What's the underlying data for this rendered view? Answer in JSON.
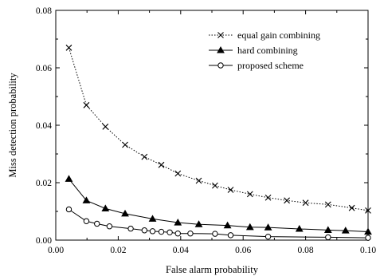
{
  "chart_data": {
    "type": "line",
    "title": "",
    "xlabel": "False alarm probability",
    "ylabel": "Miss detection probability",
    "xlim": [
      0.0,
      0.1
    ],
    "ylim": [
      0.0,
      0.08
    ],
    "xticks": [
      0.0,
      0.02,
      0.04,
      0.06,
      0.08,
      0.1
    ],
    "xtick_labels": [
      "0.00",
      "0.02",
      "0.04",
      "0.06",
      "0.08",
      "0.10"
    ],
    "yticks": [
      0.0,
      0.02,
      0.04,
      0.06,
      0.08
    ],
    "ytick_labels": [
      "0.00",
      "0.02",
      "0.04",
      "0.06",
      "0.08"
    ],
    "grid": false,
    "legend_position": "top-right",
    "series": [
      {
        "name": "equal gain combining",
        "marker": "x",
        "line_style": "dotted",
        "color": "#000000",
        "points": [
          [
            0.0042,
            0.067
          ],
          [
            0.0098,
            0.047
          ],
          [
            0.0159,
            0.0395
          ],
          [
            0.0222,
            0.0332
          ],
          [
            0.0284,
            0.029
          ],
          [
            0.0338,
            0.0262
          ],
          [
            0.0391,
            0.0232
          ],
          [
            0.0458,
            0.0207
          ],
          [
            0.051,
            0.019
          ],
          [
            0.056,
            0.0175
          ],
          [
            0.0622,
            0.016
          ],
          [
            0.068,
            0.0148
          ],
          [
            0.074,
            0.0138
          ],
          [
            0.08,
            0.013
          ],
          [
            0.0872,
            0.0124
          ],
          [
            0.0948,
            0.0112
          ],
          [
            0.1,
            0.0103
          ]
        ]
      },
      {
        "name": "hard combining",
        "marker": "triangle",
        "line_style": "solid",
        "color": "#000000",
        "points": [
          [
            0.0042,
            0.0213
          ],
          [
            0.0098,
            0.0138
          ],
          [
            0.0159,
            0.011
          ],
          [
            0.0222,
            0.0092
          ],
          [
            0.031,
            0.0074
          ],
          [
            0.0391,
            0.0061
          ],
          [
            0.0458,
            0.0055
          ],
          [
            0.055,
            0.0051
          ],
          [
            0.0622,
            0.0045
          ],
          [
            0.068,
            0.0044
          ],
          [
            0.078,
            0.0039
          ],
          [
            0.0872,
            0.0035
          ],
          [
            0.0928,
            0.0033
          ],
          [
            0.1,
            0.0029
          ]
        ]
      },
      {
        "name": "proposed scheme",
        "marker": "circle",
        "line_style": "solid",
        "color": "#000000",
        "points": [
          [
            0.0042,
            0.0107
          ],
          [
            0.0098,
            0.0066
          ],
          [
            0.0132,
            0.0057
          ],
          [
            0.0172,
            0.0048
          ],
          [
            0.024,
            0.004
          ],
          [
            0.0284,
            0.0034
          ],
          [
            0.031,
            0.0031
          ],
          [
            0.0338,
            0.0029
          ],
          [
            0.0365,
            0.0027
          ],
          [
            0.0391,
            0.0023
          ],
          [
            0.0431,
            0.0023
          ],
          [
            0.051,
            0.0022
          ],
          [
            0.056,
            0.0017
          ],
          [
            0.068,
            0.0012
          ],
          [
            0.0872,
            0.001
          ],
          [
            0.1,
            0.0008
          ]
        ]
      }
    ]
  }
}
